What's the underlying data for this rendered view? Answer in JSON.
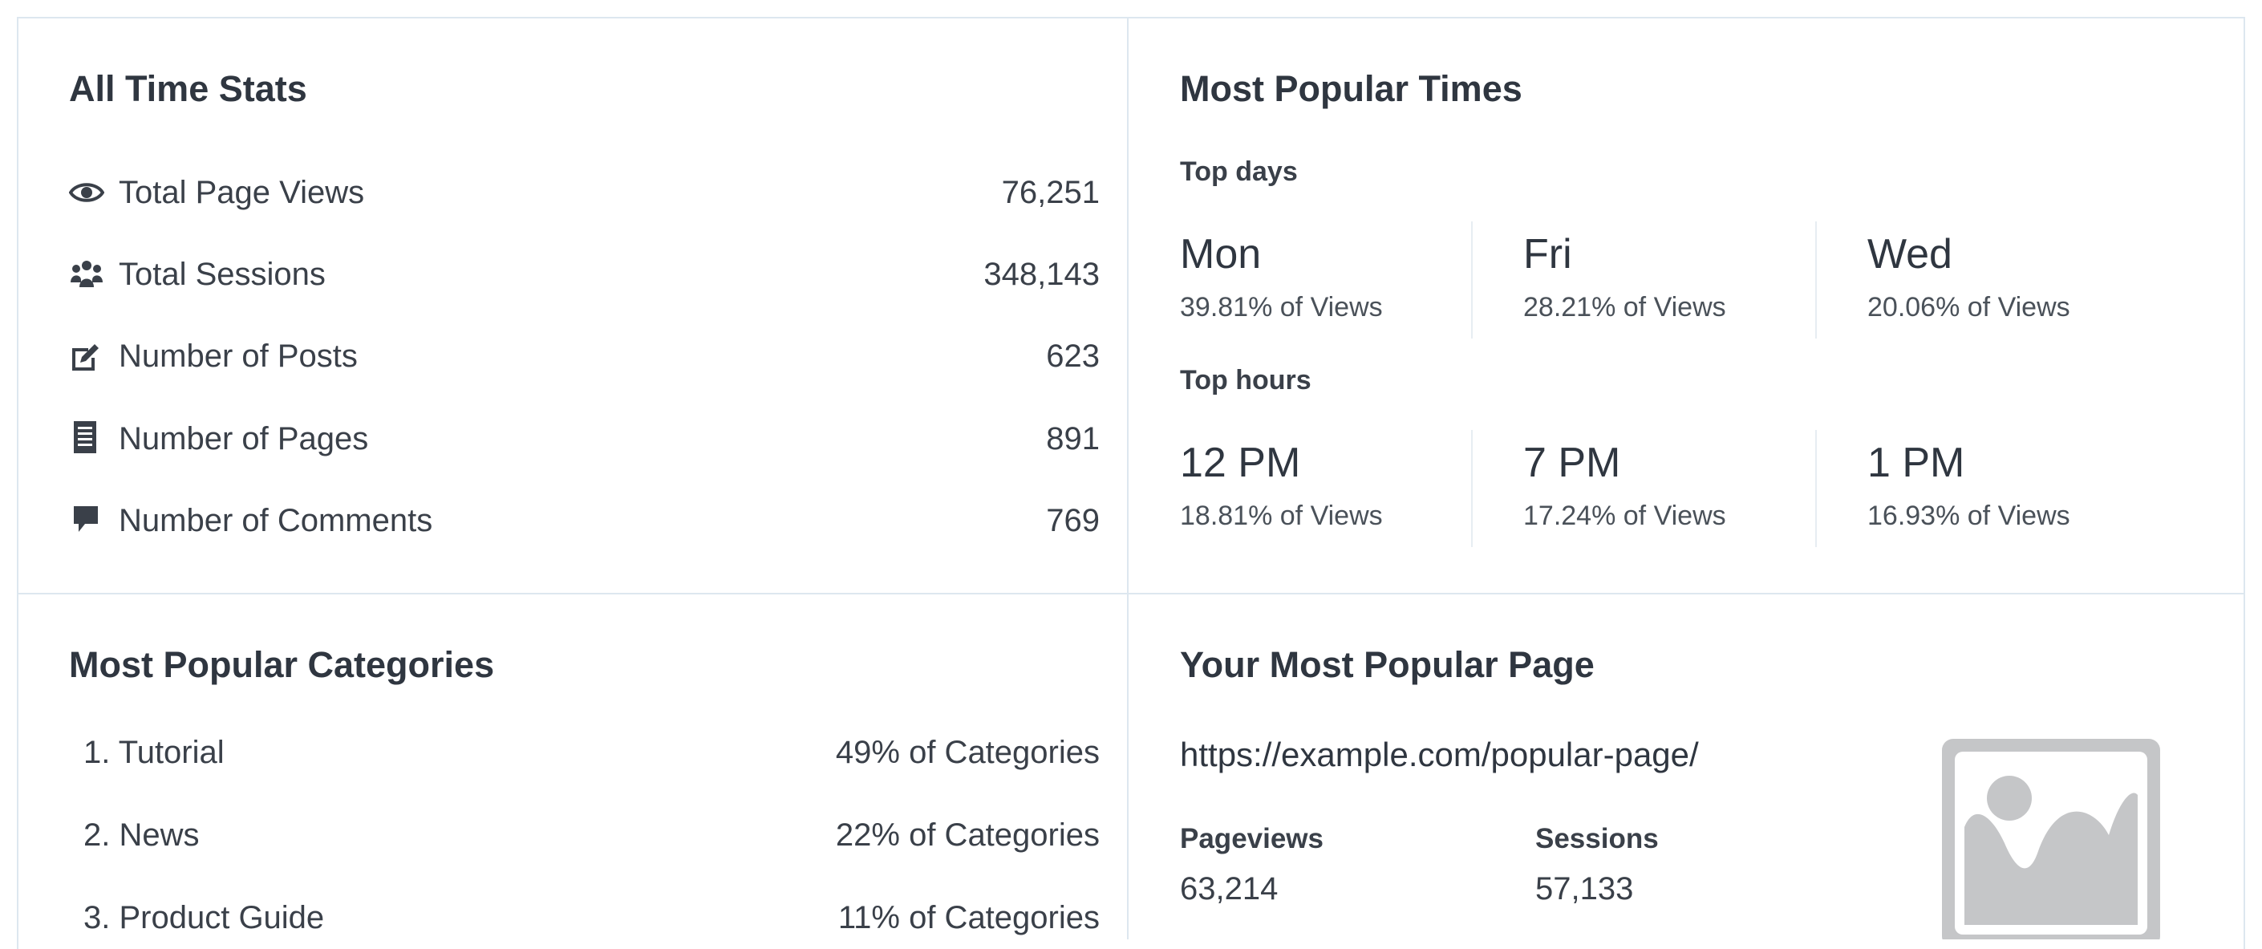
{
  "all_time_stats": {
    "title": "All Time Stats",
    "rows": [
      {
        "icon": "eye-icon",
        "label": "Total Page Views",
        "value": "76,251"
      },
      {
        "icon": "users-icon",
        "label": "Total Sessions",
        "value": "348,143"
      },
      {
        "icon": "edit-post-icon",
        "label": "Number of Posts",
        "value": "623"
      },
      {
        "icon": "page-icon",
        "label": "Number of Pages",
        "value": "891"
      },
      {
        "icon": "comment-icon",
        "label": "Number of Comments",
        "value": "769"
      }
    ]
  },
  "popular_times": {
    "title": "Most Popular Times",
    "top_days_label": "Top days",
    "top_days": [
      {
        "name": "Mon",
        "share": "39.81% of Views"
      },
      {
        "name": "Fri",
        "share": "28.21% of Views"
      },
      {
        "name": "Wed",
        "share": "20.06% of Views"
      }
    ],
    "top_hours_label": "Top hours",
    "top_hours": [
      {
        "name": "12 PM",
        "share": "18.81% of Views"
      },
      {
        "name": "7 PM",
        "share": "17.24% of Views"
      },
      {
        "name": "1 PM",
        "share": "16.93% of Views"
      }
    ]
  },
  "categories": {
    "title": "Most Popular Categories",
    "items": [
      {
        "name": "1. Tutorial",
        "share": "49% of Categories"
      },
      {
        "name": "2. News",
        "share": "22% of Categories"
      },
      {
        "name": "3. Product Guide",
        "share": "11% of Categories"
      }
    ]
  },
  "popular_page": {
    "title": "Your Most Popular Page",
    "url": "https://example.com/popular-page/",
    "pageviews_label": "Pageviews",
    "pageviews_value": "63,214",
    "sessions_label": "Sessions",
    "sessions_value": "57,133",
    "thumbnail_icon": "image-placeholder-icon"
  },
  "colors": {
    "border": "#dde7ef",
    "text": "#2f3640",
    "icon": "#3a4049",
    "placeholder": "#c5c6c8"
  }
}
